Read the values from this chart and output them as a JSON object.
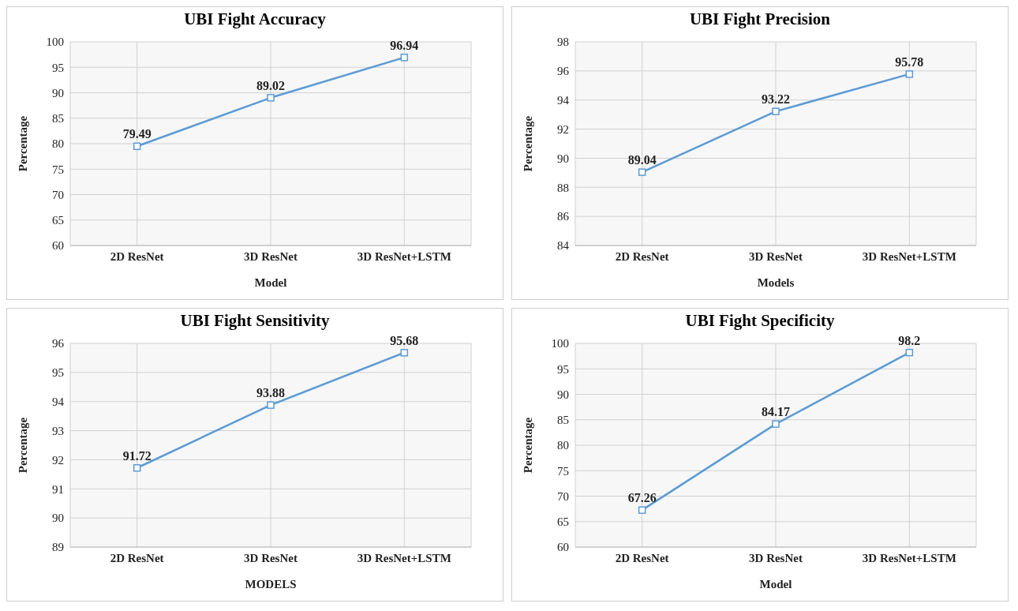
{
  "chart_data": [
    {
      "type": "line",
      "title": "UBI Fight Accuracy",
      "xlabel": "Model",
      "ylabel": "Percentage",
      "categories": [
        "2D ResNet",
        "3D ResNet",
        "3D ResNet+LSTM"
      ],
      "series": [
        {
          "color": "#5b9bd5",
          "values": [
            79.49,
            89.02,
            96.94
          ]
        }
      ],
      "ylim": [
        60,
        100
      ],
      "yticks": [
        60,
        65,
        70,
        75,
        80,
        85,
        90,
        95,
        100
      ],
      "grid": true,
      "marker": "square",
      "data_labels": true
    },
    {
      "type": "line",
      "title": "UBI Fight Precision",
      "xlabel": "Models",
      "ylabel": "Percentage",
      "categories": [
        "2D ResNet",
        "3D ResNet",
        "3D ResNet+LSTM"
      ],
      "series": [
        {
          "color": "#5b9bd5",
          "values": [
            89.04,
            93.22,
            95.78
          ]
        }
      ],
      "ylim": [
        84,
        98
      ],
      "yticks": [
        84,
        86,
        88,
        90,
        92,
        94,
        96,
        98
      ],
      "grid": true,
      "marker": "square",
      "data_labels": true
    },
    {
      "type": "line",
      "title": "UBI Fight Sensitivity",
      "xlabel": "MODELS",
      "ylabel": "Percentage",
      "categories": [
        "2D ResNet",
        "3D ResNet",
        "3D ResNet+LSTM"
      ],
      "series": [
        {
          "color": "#5b9bd5",
          "values": [
            91.72,
            93.88,
            95.68
          ]
        }
      ],
      "ylim": [
        89,
        96
      ],
      "yticks": [
        89,
        90,
        91,
        92,
        93,
        94,
        95,
        96
      ],
      "grid": true,
      "marker": "square",
      "data_labels": true
    },
    {
      "type": "line",
      "title": "UBI Fight Specificity",
      "xlabel": "Model",
      "ylabel": "Percentage",
      "categories": [
        "2D ResNet",
        "3D ResNet",
        "3D ResNet+LSTM"
      ],
      "series": [
        {
          "color": "#5b9bd5",
          "values": [
            67.26,
            84.17,
            98.2
          ]
        }
      ],
      "ylim": [
        60,
        100
      ],
      "yticks": [
        60,
        65,
        70,
        75,
        80,
        85,
        90,
        95,
        100
      ],
      "grid": true,
      "marker": "square",
      "data_labels": true
    }
  ]
}
